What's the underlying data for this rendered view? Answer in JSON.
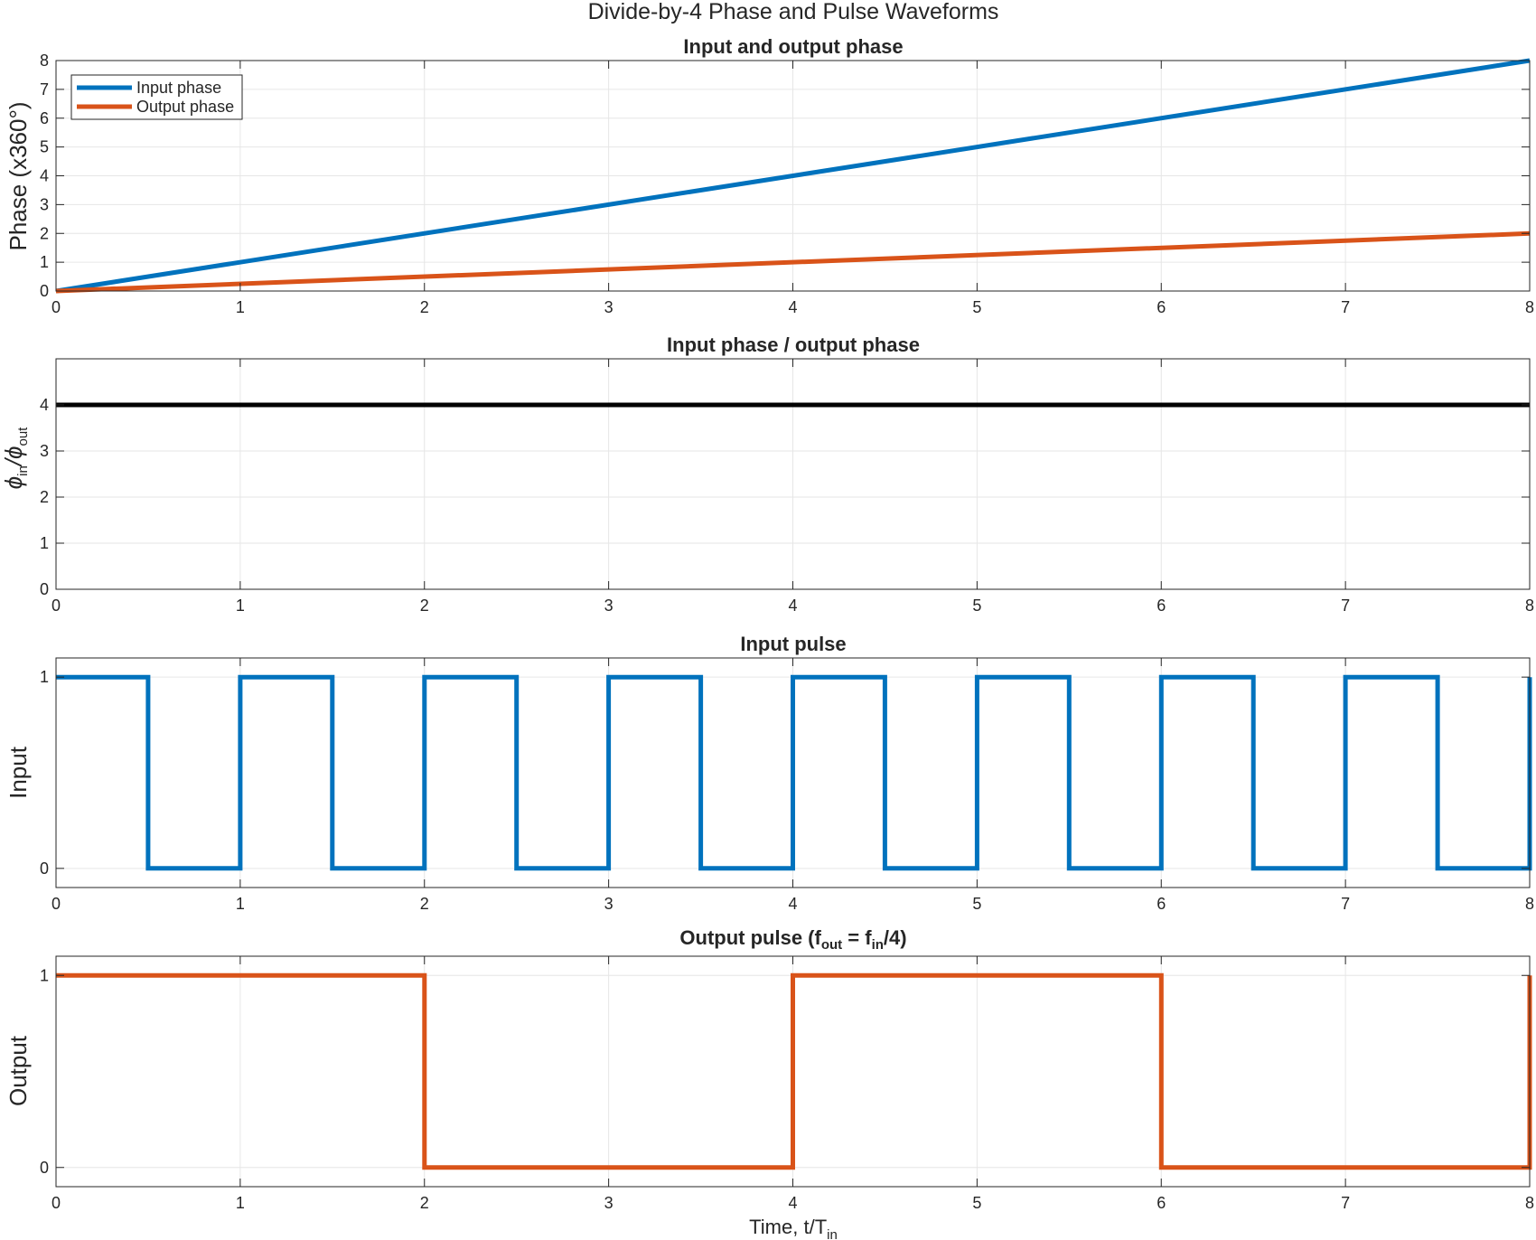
{
  "figure": {
    "title": "Divide-by-4 Phase and Pulse Waveforms"
  },
  "colors": {
    "input": "#0072BD",
    "output": "#D95319",
    "ratio": "#000000",
    "grid": "#e6e6e6",
    "axis": "#262626"
  },
  "chart_data": [
    {
      "type": "line",
      "title": "Input and output phase",
      "ylabel": "Phase (x360°)",
      "xlim": [
        0,
        8
      ],
      "ylim": [
        0,
        8
      ],
      "xticks": [
        0,
        1,
        2,
        3,
        4,
        5,
        6,
        7,
        8
      ],
      "yticks": [
        0,
        1,
        2,
        3,
        4,
        5,
        6,
        7,
        8
      ],
      "grid": true,
      "legend": "top-left",
      "series": [
        {
          "name": "Input phase",
          "x": [
            0,
            8
          ],
          "y": [
            0,
            8
          ]
        },
        {
          "name": "Output phase",
          "x": [
            0,
            8
          ],
          "y": [
            0,
            2
          ]
        }
      ]
    },
    {
      "type": "line",
      "title": "Input phase / output phase",
      "ylabel_main": "ϕ",
      "ylabel_sub1": "in",
      "ylabel_mid": "/ϕ",
      "ylabel_sub2": "out",
      "xlim": [
        0,
        8
      ],
      "ylim": [
        0,
        5
      ],
      "xticks": [
        0,
        1,
        2,
        3,
        4,
        5,
        6,
        7,
        8
      ],
      "yticks": [
        0,
        1,
        2,
        3,
        4
      ],
      "grid": true,
      "series": [
        {
          "x": [
            0,
            8
          ],
          "y": [
            4,
            4
          ]
        }
      ]
    },
    {
      "type": "line",
      "title": "Input pulse",
      "ylabel": "Input",
      "xlim": [
        0,
        8
      ],
      "ylim": [
        -0.1,
        1.1
      ],
      "xticks": [
        0,
        1,
        2,
        3,
        4,
        5,
        6,
        7,
        8
      ],
      "yticks": [
        0,
        1
      ],
      "grid": true,
      "series": [
        {
          "x": [
            0,
            0.5,
            0.5,
            1,
            1,
            1.5,
            1.5,
            2,
            2,
            2.5,
            2.5,
            3,
            3,
            3.5,
            3.5,
            4,
            4,
            4.5,
            4.5,
            5,
            5,
            5.5,
            5.5,
            6,
            6,
            6.5,
            6.5,
            7,
            7,
            7.5,
            7.5,
            8,
            8
          ],
          "y": [
            1,
            1,
            0,
            0,
            1,
            1,
            0,
            0,
            1,
            1,
            0,
            0,
            1,
            1,
            0,
            0,
            1,
            1,
            0,
            0,
            1,
            1,
            0,
            0,
            1,
            1,
            0,
            0,
            1,
            1,
            0,
            0,
            1
          ]
        }
      ]
    },
    {
      "type": "line",
      "title_pre": "Output  pulse  (f",
      "title_sub1": "out",
      "title_mid": "  =  f",
      "title_sub2": "in",
      "title_post": "/4)",
      "ylabel": "Output",
      "xlabel_pre": "Time,  t/T",
      "xlabel_sub": "in",
      "xlim": [
        0,
        8
      ],
      "ylim": [
        -0.1,
        1.1
      ],
      "xticks": [
        0,
        1,
        2,
        3,
        4,
        5,
        6,
        7,
        8
      ],
      "yticks": [
        0,
        1
      ],
      "grid": true,
      "series": [
        {
          "x": [
            0,
            2,
            2,
            4,
            4,
            6,
            6,
            8,
            8
          ],
          "y": [
            1,
            1,
            0,
            0,
            1,
            1,
            0,
            0,
            1
          ]
        }
      ]
    }
  ]
}
